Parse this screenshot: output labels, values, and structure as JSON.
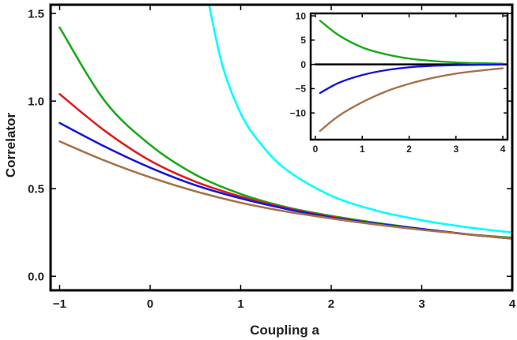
{
  "chart_data": [
    {
      "type": "line",
      "title": "",
      "xlabel": "Coupling a",
      "ylabel": "Correlator",
      "xlim": [
        -1.1,
        4.0
      ],
      "ylim": [
        -0.08,
        1.55
      ],
      "xticks": [
        -1,
        0,
        1,
        2,
        3,
        4
      ],
      "xtick_labels": [
        "−1",
        "0",
        "1",
        "2",
        "3",
        "4"
      ],
      "yticks": [
        0.0,
        0.5,
        1.0,
        1.5
      ],
      "ytick_labels": [
        "0.0",
        "0.5",
        "1.0",
        "1.5"
      ],
      "grid": false,
      "legend": "none",
      "series": [
        {
          "color": "#00FFFF",
          "x": [
            0.65,
            0.8,
            1.0,
            1.2,
            1.5,
            2.0,
            2.5,
            3.0,
            3.5,
            4.0
          ],
          "y": [
            1.55,
            1.2,
            0.93,
            0.77,
            0.61,
            0.46,
            0.375,
            0.32,
            0.28,
            0.25
          ]
        },
        {
          "color": "#1AAA1A",
          "x": [
            -1.0,
            -0.5,
            0.0,
            0.5,
            1.0,
            1.5,
            2.0,
            2.5,
            3.0,
            3.5,
            4.0
          ],
          "y": [
            1.42,
            1.0,
            0.75,
            0.58,
            0.47,
            0.395,
            0.345,
            0.305,
            0.27,
            0.24,
            0.22
          ]
        },
        {
          "color": "#E01B1B",
          "x": [
            -1.0,
            -0.5,
            0.0,
            0.5,
            1.0,
            1.5,
            2.0,
            2.5,
            3.0,
            3.5,
            4.0
          ],
          "y": [
            1.04,
            0.83,
            0.66,
            0.54,
            0.455,
            0.39,
            0.34,
            0.3,
            0.27,
            0.24,
            0.215
          ]
        },
        {
          "color": "#1515E0",
          "x": [
            -1.0,
            -0.5,
            0.0,
            0.5,
            1.0,
            1.5,
            2.0,
            2.5,
            3.0,
            3.5,
            4.0
          ],
          "y": [
            0.875,
            0.74,
            0.62,
            0.52,
            0.445,
            0.385,
            0.335,
            0.3,
            0.27,
            0.24,
            0.215
          ]
        },
        {
          "color": "#A8724A",
          "x": [
            -1.0,
            -0.5,
            0.0,
            0.5,
            1.0,
            1.5,
            2.0,
            2.5,
            3.0,
            3.5,
            4.0
          ],
          "y": [
            0.77,
            0.66,
            0.565,
            0.485,
            0.42,
            0.37,
            0.33,
            0.295,
            0.265,
            0.24,
            0.215
          ]
        }
      ]
    },
    {
      "type": "line",
      "title": "",
      "xlabel": "",
      "ylabel": "",
      "xlim": [
        -0.1,
        4.1
      ],
      "ylim": [
        -15.5,
        10.5
      ],
      "xticks": [
        0,
        1,
        2,
        3,
        4
      ],
      "xtick_labels": [
        "0",
        "1",
        "2",
        "3",
        "4"
      ],
      "yticks": [
        10,
        5,
        0,
        -5,
        -10
      ],
      "ytick_labels": [
        "10",
        "5",
        "0",
        "−5",
        "−10"
      ],
      "grid": false,
      "legend": "none",
      "series": [
        {
          "color": "#000000",
          "x": [
            0.0,
            4.1
          ],
          "y": [
            0,
            0
          ]
        },
        {
          "color": "#1AAA1A",
          "x": [
            0.1,
            0.5,
            1.0,
            1.5,
            2.0,
            2.5,
            3.0,
            3.5,
            4.0
          ],
          "y": [
            9.0,
            6.0,
            3.5,
            2.1,
            1.2,
            0.7,
            0.4,
            0.25,
            0.15
          ]
        },
        {
          "color": "#1515E0",
          "x": [
            0.1,
            0.5,
            1.0,
            1.5,
            2.0,
            2.5,
            3.0,
            3.5,
            4.0
          ],
          "y": [
            -5.9,
            -3.8,
            -2.2,
            -1.2,
            -0.6,
            -0.3,
            -0.15,
            -0.08,
            -0.04
          ]
        },
        {
          "color": "#A8724A",
          "x": [
            0.1,
            0.5,
            1.0,
            1.5,
            2.0,
            2.5,
            3.0,
            3.5,
            4.0
          ],
          "y": [
            -13.7,
            -10.6,
            -7.8,
            -5.6,
            -4.0,
            -2.8,
            -1.9,
            -1.3,
            -0.8
          ]
        }
      ]
    }
  ]
}
